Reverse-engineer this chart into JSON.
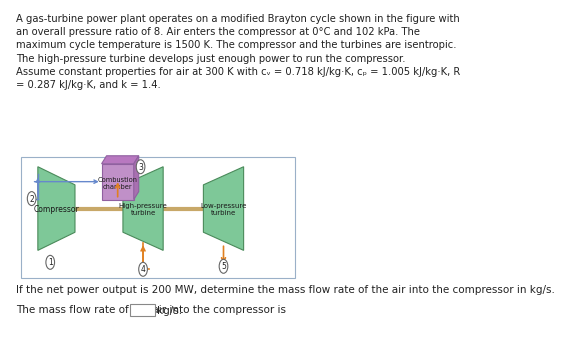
{
  "title_text": "A gas-turbine power plant operates on a modified Brayton cycle shown in the figure with\nan overall pressure ratio of 8. Air enters the compressor at 0°C and 102 kPa. The\nmaximum cycle temperature is 1500 K. The compressor and the turbines are isentropic.\nThe high-pressure turbine develops just enough power to run the compressor.\nAssume constant properties for air at 300 K with cᵥ = 0.718 kJ/kg·K, cₚ = 1.005 kJ/kg·K, R\n= 0.287 kJ/kg·K, and k = 1.4.",
  "question_text": "If the net power output is 200 MW, determine the mass flow rate of the air into the compressor in kg/s.",
  "answer_label": "The mass flow rate of the air into the compressor is",
  "answer_unit": "kg/s.",
  "bg_color": "#ffffff",
  "border_color": "#9ab0c8",
  "compressor_color": "#7ec898",
  "turbine_color": "#7ec898",
  "turbine_edge": "#4a8a5a",
  "combustion_face": "#c090c8",
  "combustion_top": "#b878c0",
  "combustion_right": "#a870b0",
  "combustion_edge": "#9060a0",
  "arrow_blue": "#6688cc",
  "arrow_orange": "#e08020",
  "shaft_color": "#c8a868",
  "node_bg": "#ffffff",
  "node_border": "#666666",
  "text_color": "#222222",
  "title_fontsize": 7.2,
  "label_fontsize": 7.5
}
